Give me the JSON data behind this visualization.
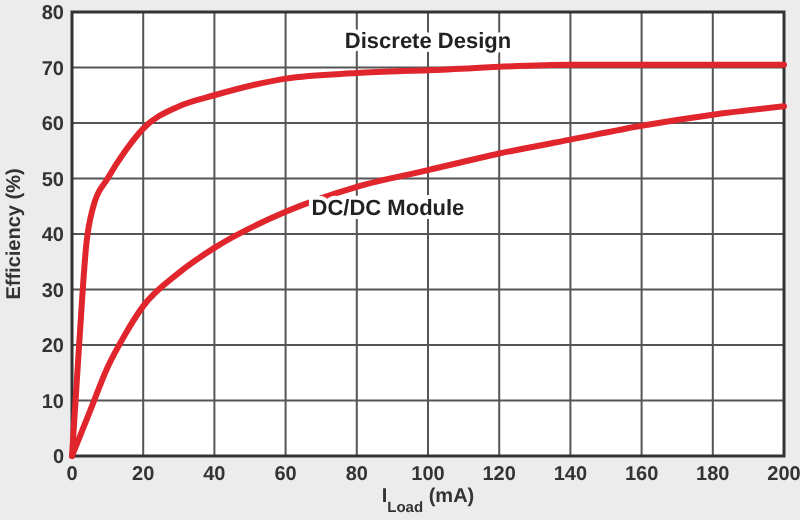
{
  "chart_data": {
    "type": "line",
    "ylabel": "Efficiency (%)",
    "xlabel": "I$_{Load}$ (mA)",
    "xlim": [
      0,
      200
    ],
    "xticks": [
      0,
      20,
      40,
      60,
      80,
      100,
      120,
      140,
      160,
      180,
      200
    ],
    "ylim": [
      0,
      80
    ],
    "yticks": [
      0,
      10,
      20,
      30,
      40,
      50,
      60,
      70,
      80
    ],
    "grid": true,
    "marker": "none",
    "line_style": "solid",
    "series": [
      {
        "name": "Discrete Design",
        "color": "#e0262c",
        "x": [
          0,
          2,
          4,
          6,
          10,
          15,
          20,
          30,
          40,
          60,
          80,
          100,
          140,
          200
        ],
        "values": [
          0,
          20,
          38,
          45,
          50,
          55,
          59,
          63,
          65,
          68,
          69,
          69.5,
          70.5,
          70.5
        ]
      },
      {
        "name": "DC/DC Module",
        "color": "#e0262c",
        "x": [
          0,
          5,
          10,
          15,
          20,
          30,
          40,
          60,
          80,
          100,
          120,
          140,
          160,
          180,
          200
        ],
        "values": [
          0,
          8,
          16,
          22,
          27,
          33,
          37.5,
          44,
          48.5,
          51.5,
          54.5,
          57,
          59.5,
          61.5,
          63
        ]
      }
    ]
  }
}
